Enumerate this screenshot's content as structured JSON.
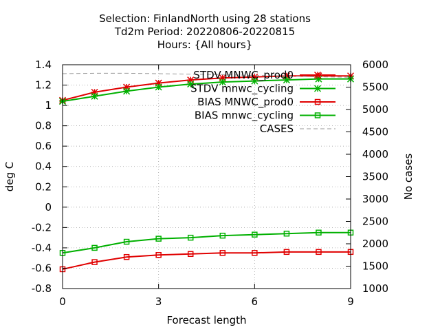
{
  "chart_data": {
    "type": "line",
    "title_lines": [
      "Selection: FinlandNorth using    28 stations",
      "Td2m   Period: 20220806-20220815",
      "Hours: {All hours}"
    ],
    "xlabel": "Forecast length",
    "ylabel": "deg C",
    "y2label": "No cases",
    "xlim": [
      0,
      9
    ],
    "ylim": [
      -0.8,
      1.4
    ],
    "y2lim": [
      1000,
      6000
    ],
    "x_ticks": [
      "0",
      "3",
      "6",
      "9"
    ],
    "y_ticks": [
      "-0.8",
      "-0.6",
      "-0.4",
      "-0.2",
      "0",
      "0.2",
      "0.4",
      "0.6",
      "0.8",
      "1",
      "1.2",
      "1.4"
    ],
    "y2_ticks": [
      "1000",
      "1500",
      "2000",
      "2500",
      "3000",
      "3500",
      "4000",
      "4500",
      "5000",
      "5500",
      "6000"
    ],
    "grid": true,
    "legend_position": "top-right",
    "x": [
      0,
      1,
      2,
      3,
      4,
      5,
      6,
      7,
      8,
      9
    ],
    "series": [
      {
        "name": "STDV MNWC_prod0",
        "axis": "left",
        "color": "#e00000",
        "marker": "star",
        "values": [
          1.05,
          1.13,
          1.18,
          1.22,
          1.25,
          1.27,
          1.28,
          1.29,
          1.29,
          1.29
        ]
      },
      {
        "name": "STDV mnwc_cycling",
        "axis": "left",
        "color": "#00b000",
        "marker": "star",
        "values": [
          1.04,
          1.09,
          1.14,
          1.18,
          1.21,
          1.23,
          1.24,
          1.25,
          1.26,
          1.26
        ]
      },
      {
        "name": "BIAS MNWC_prod0",
        "axis": "left",
        "color": "#e00000",
        "marker": "square",
        "values": [
          -0.61,
          -0.54,
          -0.49,
          -0.47,
          -0.46,
          -0.45,
          -0.45,
          -0.44,
          -0.44,
          -0.44
        ]
      },
      {
        "name": "BIAS mnwc_cycling",
        "axis": "left",
        "color": "#00b000",
        "marker": "square",
        "values": [
          -0.45,
          -0.4,
          -0.34,
          -0.31,
          -0.3,
          -0.28,
          -0.27,
          -0.26,
          -0.25,
          -0.25
        ]
      },
      {
        "name": "CASES",
        "axis": "right",
        "color": "#999999",
        "marker": "none",
        "dashed": true,
        "values": [
          5800,
          5810,
          5810,
          5800,
          5790,
          5780,
          5760,
          5750,
          5730,
          5720
        ]
      }
    ]
  }
}
